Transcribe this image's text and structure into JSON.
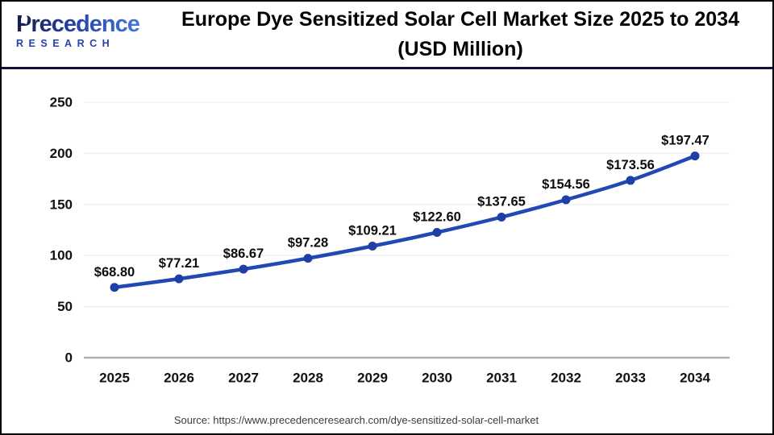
{
  "header": {
    "logo": {
      "name": "Precedence",
      "subname": "RESEARCH"
    },
    "title_line1": "Europe Dye Sensitized Solar Cell Market Size 2025 to 2034",
    "title_line2": "(USD Million)"
  },
  "footer": {
    "source": "Source: https://www.precedenceresearch.com/dye-sensitized-solar-cell-market"
  },
  "colors": {
    "line": "#2148b4",
    "marker": "#1d3fa6",
    "gridline": "#ededed",
    "axis_line": "#b0b0b0",
    "tick_label": "#111111",
    "data_label": "#0d0d0d",
    "divider": "#0e1238"
  },
  "chart_data": {
    "type": "line",
    "title": "Europe Dye Sensitized Solar Cell Market Size 2025 to 2034 (USD Million)",
    "unit": "USD Million",
    "categories": [
      "2025",
      "2026",
      "2027",
      "2028",
      "2029",
      "2030",
      "2031",
      "2032",
      "2033",
      "2034"
    ],
    "values": [
      68.8,
      77.21,
      86.67,
      97.28,
      109.21,
      122.6,
      137.65,
      154.56,
      173.56,
      197.47
    ],
    "data_labels": [
      "$68.80",
      "$77.21",
      "$86.67",
      "$97.28",
      "$109.21",
      "$122.60",
      "$137.65",
      "$154.56",
      "$173.56",
      "$197.47"
    ],
    "label_prefix": "$",
    "series_name": "Europe Dye Sensitized Solar Cell Market Size (USD Million)",
    "xlabel": "",
    "ylabel": "",
    "ylim": [
      0,
      250
    ],
    "yticks": [
      0,
      50,
      100,
      150,
      200,
      250
    ],
    "grid": true,
    "legend": "none",
    "marker": "circle"
  }
}
